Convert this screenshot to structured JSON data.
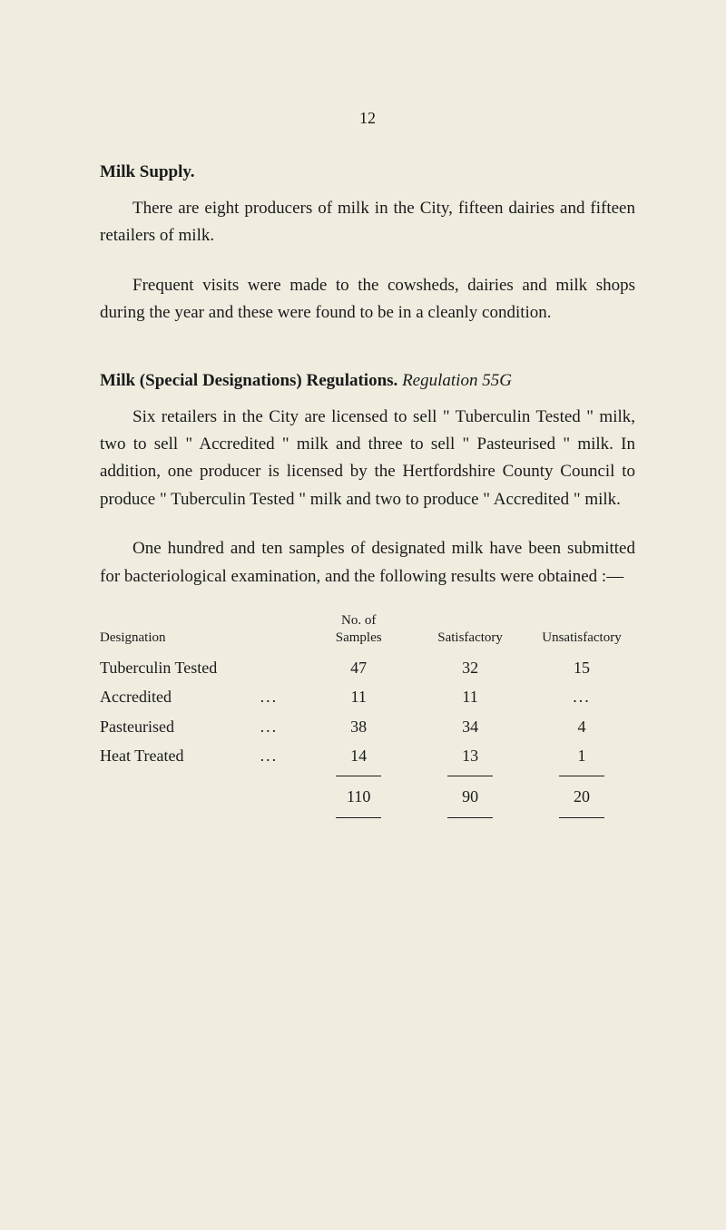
{
  "page_number": "12",
  "section1": {
    "heading": "Milk Supply.",
    "para1": "There are eight producers of milk in the City, fifteen dairies and fifteen retailers of milk.",
    "para2": "Frequent visits were made to the cowsheds, dairies and milk shops during the year and these were found to be in a cleanly condition."
  },
  "section2": {
    "heading_bold": "Milk (Special Designations) Regulations.",
    "heading_italic": "Regulation 55G",
    "para1": "Six retailers in the City are licensed to sell \" Tuber­culin Tested \" milk, two to sell \" Accredited \" milk and three to sell \" Pasteurised \" milk. In addition, one pro­ducer is licensed by the Hertfordshire County Council to produce \" Tuberculin Tested \" milk and two to produce \" Accredited \" milk.",
    "para2": "One hundred and ten samples of designated milk have been submitted for bacteriological examination, and the following results were obtained :—"
  },
  "table": {
    "headers": {
      "designation": "Designation",
      "samples_line1": "No. of",
      "samples_line2": "Samples",
      "satisfactory": "Satisfactory",
      "unsatisfactory": "Unsatisfactory"
    },
    "rows": [
      {
        "designation": "Tuberculin Tested",
        "dots": "",
        "samples": "47",
        "satisfactory": "32",
        "unsatisfactory": "15"
      },
      {
        "designation": "Accredited",
        "dots": "...",
        "samples": "11",
        "satisfactory": "11",
        "unsatisfactory": "..."
      },
      {
        "designation": "Pasteurised",
        "dots": "...",
        "samples": "38",
        "satisfactory": "34",
        "unsatisfactory": "4"
      },
      {
        "designation": "Heat Treated",
        "dots": "...",
        "samples": "14",
        "satisfactory": "13",
        "unsatisfactory": "1"
      }
    ],
    "totals": {
      "samples": "110",
      "satisfactory": "90",
      "unsatisfactory": "20"
    }
  }
}
